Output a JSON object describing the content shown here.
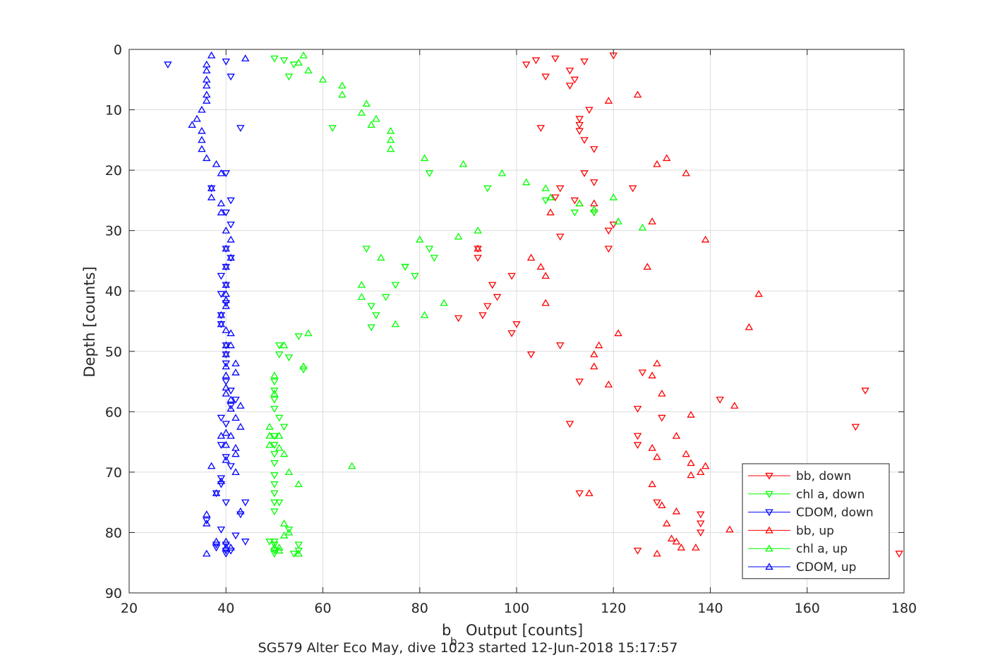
{
  "chart_data": {
    "type": "scatter",
    "caption": "SG579 Alter Eco May, dive 1023 started 12-Jun-2018 15:17:57",
    "xlabel": "Output [counts]",
    "xlabel_prefix": "b",
    "xlabel_subscript": "b",
    "ylabel": "Depth [counts]",
    "xlim": [
      20,
      180
    ],
    "ylim": [
      0,
      90
    ],
    "y_reversed": true,
    "grid": true,
    "legend_position": "bottom-right",
    "x_ticks": [
      20,
      40,
      60,
      80,
      100,
      120,
      140,
      160,
      180
    ],
    "y_ticks": [
      0,
      10,
      20,
      30,
      40,
      50,
      60,
      70,
      80,
      90
    ],
    "series": [
      {
        "name": "bb, down",
        "color": "#ff0000",
        "marker": "triangle-down",
        "points": [
          [
            120,
            1
          ],
          [
            108,
            1.5
          ],
          [
            104,
            1.8
          ],
          [
            102,
            2.5
          ],
          [
            114,
            2
          ],
          [
            111,
            3.5
          ],
          [
            106,
            4.5
          ],
          [
            112,
            5
          ],
          [
            111,
            6
          ],
          [
            105,
            13
          ],
          [
            115,
            10
          ],
          [
            113,
            11.5
          ],
          [
            113,
            12.5
          ],
          [
            113,
            13.5
          ],
          [
            114,
            15
          ],
          [
            116,
            16.5
          ],
          [
            114,
            20.5
          ],
          [
            116,
            22
          ],
          [
            109,
            23
          ],
          [
            108,
            24.5
          ],
          [
            112,
            25
          ],
          [
            116,
            27
          ],
          [
            120,
            29
          ],
          [
            119,
            30
          ],
          [
            109,
            31
          ],
          [
            119,
            33
          ],
          [
            92,
            33
          ],
          [
            92,
            34.5
          ],
          [
            99,
            37.5
          ],
          [
            95,
            39
          ],
          [
            96,
            41
          ],
          [
            94,
            42.5
          ],
          [
            93,
            44
          ],
          [
            88,
            44.5
          ],
          [
            100,
            45.5
          ],
          [
            99,
            47
          ],
          [
            109,
            49
          ],
          [
            103,
            50.5
          ],
          [
            113,
            55
          ],
          [
            126,
            53.5
          ],
          [
            125,
            59.5
          ],
          [
            130,
            61
          ],
          [
            111,
            62
          ],
          [
            125,
            64
          ],
          [
            125,
            65.5
          ],
          [
            124,
            23
          ],
          [
            142,
            58
          ],
          [
            172,
            56.5
          ],
          [
            170,
            62.5
          ],
          [
            129,
            75
          ],
          [
            113,
            73.5
          ],
          [
            138,
            77
          ],
          [
            138,
            78.5
          ],
          [
            138,
            80
          ],
          [
            125,
            83
          ],
          [
            179,
            83.5
          ]
        ]
      },
      {
        "name": "chl a, down",
        "color": "#00ff00",
        "marker": "triangle-down",
        "points": [
          [
            50,
            1.5
          ],
          [
            52,
            1.8
          ],
          [
            54,
            2.5
          ],
          [
            53,
            4.5
          ],
          [
            62,
            13
          ],
          [
            82,
            20.5
          ],
          [
            94,
            23
          ],
          [
            106,
            25
          ],
          [
            112,
            27
          ],
          [
            116,
            27
          ],
          [
            69,
            33
          ],
          [
            82,
            33
          ],
          [
            83,
            34.5
          ],
          [
            77,
            36
          ],
          [
            79,
            37.5
          ],
          [
            75,
            39
          ],
          [
            70,
            42.5
          ],
          [
            71,
            44
          ],
          [
            70,
            46
          ],
          [
            51,
            49
          ],
          [
            51,
            50.5
          ],
          [
            53,
            51
          ],
          [
            56,
            53
          ],
          [
            55,
            47.5
          ],
          [
            50,
            55
          ],
          [
            50,
            56.5
          ],
          [
            50,
            58
          ],
          [
            50,
            59.5
          ],
          [
            52,
            62.5
          ],
          [
            51,
            61
          ],
          [
            50,
            64
          ],
          [
            50,
            65.5
          ],
          [
            50,
            67
          ],
          [
            50,
            68.5
          ],
          [
            50,
            70.5
          ],
          [
            50,
            72
          ],
          [
            50,
            73.5
          ],
          [
            50,
            75
          ],
          [
            51,
            75
          ],
          [
            50,
            76.5
          ],
          [
            53,
            79.5
          ],
          [
            50,
            81.5
          ],
          [
            49,
            81.5
          ],
          [
            50,
            82
          ],
          [
            50,
            83
          ],
          [
            55,
            82
          ],
          [
            50,
            83.5
          ],
          [
            54,
            83.5
          ],
          [
            55,
            83
          ],
          [
            77,
            36
          ],
          [
            73,
            41
          ]
        ]
      },
      {
        "name": "CDOM, down",
        "color": "#0000ff",
        "marker": "triangle-down",
        "points": [
          [
            28,
            2.5
          ],
          [
            40,
            2
          ],
          [
            41,
            4.5
          ],
          [
            43,
            13
          ],
          [
            40,
            20.5
          ],
          [
            37,
            23
          ],
          [
            41,
            25
          ],
          [
            40,
            27
          ],
          [
            41,
            29
          ],
          [
            40,
            33
          ],
          [
            41,
            34.5
          ],
          [
            40,
            36
          ],
          [
            39,
            37.5
          ],
          [
            40,
            39
          ],
          [
            39,
            40.5
          ],
          [
            40,
            42
          ],
          [
            39,
            44
          ],
          [
            39,
            45.5
          ],
          [
            40,
            49
          ],
          [
            40,
            50.5
          ],
          [
            40,
            52
          ],
          [
            40,
            55
          ],
          [
            41,
            56.5
          ],
          [
            42,
            58
          ],
          [
            41,
            59
          ],
          [
            39,
            61
          ],
          [
            40,
            62
          ],
          [
            39,
            65.5
          ],
          [
            40,
            67.5
          ],
          [
            41,
            69
          ],
          [
            39,
            71
          ],
          [
            39,
            72
          ],
          [
            38,
            73.5
          ],
          [
            40,
            75
          ],
          [
            36,
            78
          ],
          [
            39,
            79.5
          ],
          [
            40,
            82
          ],
          [
            38,
            82
          ],
          [
            38,
            82.5
          ],
          [
            40,
            83.5
          ],
          [
            40,
            83
          ],
          [
            41,
            83
          ],
          [
            42,
            80.5
          ],
          [
            44,
            81.5
          ],
          [
            43,
            77
          ],
          [
            44,
            75
          ]
        ]
      },
      {
        "name": "bb, up",
        "color": "#ff0000",
        "marker": "triangle-up",
        "points": [
          [
            125,
            7.5
          ],
          [
            119,
            8.5
          ],
          [
            131,
            18
          ],
          [
            129,
            19
          ],
          [
            135,
            20.5
          ],
          [
            121,
            47
          ],
          [
            150,
            40.5
          ],
          [
            148,
            46
          ],
          [
            117,
            49
          ],
          [
            116,
            50.5
          ],
          [
            116,
            52.5
          ],
          [
            129,
            52
          ],
          [
            128,
            54
          ],
          [
            119,
            55.5
          ],
          [
            130,
            57
          ],
          [
            136,
            60.5
          ],
          [
            145,
            59
          ],
          [
            133,
            64
          ],
          [
            128,
            66
          ],
          [
            129,
            67.5
          ],
          [
            135,
            67
          ],
          [
            136,
            68.5
          ],
          [
            136,
            70.5
          ],
          [
            138,
            70
          ],
          [
            139,
            69
          ],
          [
            128,
            72
          ],
          [
            130,
            75.5
          ],
          [
            133,
            76.5
          ],
          [
            131,
            78.5
          ],
          [
            132,
            81
          ],
          [
            133,
            81.5
          ],
          [
            134,
            82.5
          ],
          [
            137,
            82.5
          ],
          [
            144,
            79.5
          ],
          [
            129,
            83.5
          ],
          [
            115,
            73.5
          ],
          [
            127,
            36
          ],
          [
            139,
            31.5
          ],
          [
            128,
            28.5
          ],
          [
            106,
            42
          ],
          [
            103,
            34.5
          ],
          [
            105,
            36
          ],
          [
            106,
            37.5
          ],
          [
            107,
            27
          ],
          [
            113,
            25.5
          ],
          [
            116,
            25.5
          ],
          [
            92,
            33
          ]
        ]
      },
      {
        "name": "chl a, up",
        "color": "#00ff00",
        "marker": "triangle-up",
        "points": [
          [
            56,
            1
          ],
          [
            55,
            2.2
          ],
          [
            57,
            3.5
          ],
          [
            60,
            5
          ],
          [
            64,
            6
          ],
          [
            64,
            7.5
          ],
          [
            69,
            9
          ],
          [
            68,
            10.5
          ],
          [
            71,
            11.5
          ],
          [
            70,
            12.5
          ],
          [
            74,
            13.5
          ],
          [
            74,
            15
          ],
          [
            74,
            16.5
          ],
          [
            81,
            18
          ],
          [
            89,
            19
          ],
          [
            97,
            20.5
          ],
          [
            102,
            22
          ],
          [
            106,
            23
          ],
          [
            107,
            24.5
          ],
          [
            113,
            25.5
          ],
          [
            116,
            26.5
          ],
          [
            121,
            28.5
          ],
          [
            120,
            24.5
          ],
          [
            126,
            29.5
          ],
          [
            92,
            30
          ],
          [
            80,
            31.5
          ],
          [
            88,
            31
          ],
          [
            72,
            34.5
          ],
          [
            68,
            39
          ],
          [
            68,
            41
          ],
          [
            75,
            45.5
          ],
          [
            81,
            44
          ],
          [
            85,
            42
          ],
          [
            66,
            69
          ],
          [
            53,
            70
          ],
          [
            55,
            72
          ],
          [
            52,
            78.5
          ],
          [
            53,
            80
          ],
          [
            52,
            80.5
          ],
          [
            51,
            82.5
          ],
          [
            50,
            82.5
          ],
          [
            52,
            49
          ],
          [
            57,
            47
          ],
          [
            56,
            52.5
          ],
          [
            50,
            54
          ],
          [
            50,
            57
          ],
          [
            49,
            62.5
          ],
          [
            49,
            64
          ],
          [
            49,
            65.5
          ],
          [
            51,
            64
          ],
          [
            51,
            66
          ],
          [
            52,
            67
          ],
          [
            55,
            83.5
          ],
          [
            51,
            83
          ]
        ]
      },
      {
        "name": "CDOM, up",
        "color": "#0000ff",
        "marker": "triangle-up",
        "points": [
          [
            37,
            1
          ],
          [
            44,
            1.5
          ],
          [
            36,
            2.5
          ],
          [
            36,
            3.5
          ],
          [
            36,
            5
          ],
          [
            36,
            6
          ],
          [
            36,
            7.5
          ],
          [
            36,
            8.5
          ],
          [
            35,
            10
          ],
          [
            34,
            11.5
          ],
          [
            33,
            12.5
          ],
          [
            35,
            13.5
          ],
          [
            35,
            15
          ],
          [
            35,
            16.5
          ],
          [
            36,
            18
          ],
          [
            38,
            19
          ],
          [
            39,
            20.5
          ],
          [
            37,
            23
          ],
          [
            37,
            24.5
          ],
          [
            39,
            25.5
          ],
          [
            39,
            27
          ],
          [
            40,
            30
          ],
          [
            41,
            31.5
          ],
          [
            40,
            33
          ],
          [
            41,
            34.5
          ],
          [
            40,
            36
          ],
          [
            40,
            39
          ],
          [
            40,
            40.5
          ],
          [
            40,
            41.5
          ],
          [
            40,
            42.5
          ],
          [
            39,
            44
          ],
          [
            39,
            45.5
          ],
          [
            40,
            46.5
          ],
          [
            41,
            47
          ],
          [
            40,
            49
          ],
          [
            41,
            49
          ],
          [
            40,
            50.5
          ],
          [
            40,
            52.5
          ],
          [
            42,
            52
          ],
          [
            42,
            53.5
          ],
          [
            40,
            54
          ],
          [
            40,
            56
          ],
          [
            40,
            57
          ],
          [
            41,
            58
          ],
          [
            41,
            59.5
          ],
          [
            43,
            59
          ],
          [
            42,
            61
          ],
          [
            43,
            62.5
          ],
          [
            40,
            63.5
          ],
          [
            39,
            64
          ],
          [
            41,
            64
          ],
          [
            40,
            65.5
          ],
          [
            42,
            66
          ],
          [
            42,
            67
          ],
          [
            40,
            68
          ],
          [
            37,
            69
          ],
          [
            42,
            70
          ],
          [
            39,
            71.5
          ],
          [
            38,
            73.5
          ],
          [
            36,
            77
          ],
          [
            36,
            78.5
          ],
          [
            43,
            76.5
          ],
          [
            40,
            81.5
          ],
          [
            41,
            82.5
          ],
          [
            38,
            81.5
          ],
          [
            40,
            82.5
          ],
          [
            36,
            83.5
          ]
        ]
      }
    ]
  }
}
